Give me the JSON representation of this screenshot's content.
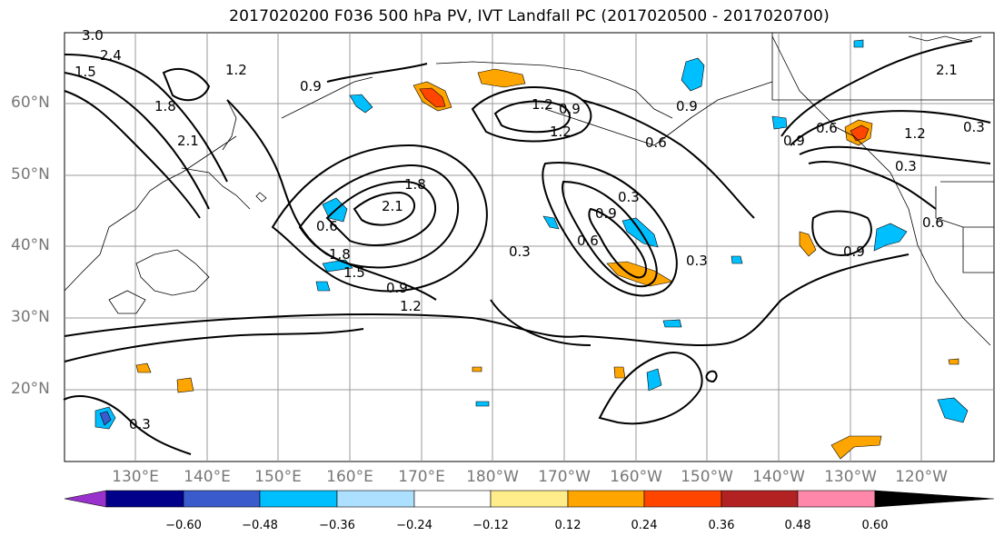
{
  "title": "2017020200 F036 500 hPa PV, IVT Landfall PC (2017020500 - 2017020700)",
  "lat_labels": [
    "60°N",
    "50°N",
    "40°N",
    "30°N",
    "20°N"
  ],
  "lon_labels": [
    "130°E",
    "140°E",
    "150°E",
    "160°E",
    "170°E",
    "180°W",
    "170°W",
    "160°W",
    "150°W",
    "140°W",
    "130°W",
    "120°W"
  ],
  "contour_labels": [
    "3.0",
    "2.4",
    "1.5",
    "1.8",
    "2.1",
    "1.2",
    "0.9",
    "1.2",
    "0.9",
    "1.2",
    "0.9",
    "0.6",
    "0.9",
    "0.6",
    "2.1",
    "1.2",
    "0.3",
    "1.8",
    "2.1",
    "0.6",
    "1.8",
    "1.5",
    "0.9",
    "1.2",
    "0.3",
    "0.3",
    "0.9",
    "0.6",
    "0.3",
    "0.9",
    "0.6",
    "0.3",
    "0.3"
  ],
  "colorbar": {
    "ticks": [
      "−0.60",
      "−0.48",
      "−0.36",
      "−0.24",
      "−0.12",
      "0.12",
      "0.24",
      "0.36",
      "0.48",
      "0.60"
    ],
    "colors": [
      "#9932CC",
      "#00008B",
      "#3A5BCC",
      "#00BFFF",
      "#ADDFFF",
      "#FFFFFF",
      "#FFEC8B",
      "#FFA500",
      "#FF4500",
      "#B22222",
      "#FF88AA"
    ]
  }
}
